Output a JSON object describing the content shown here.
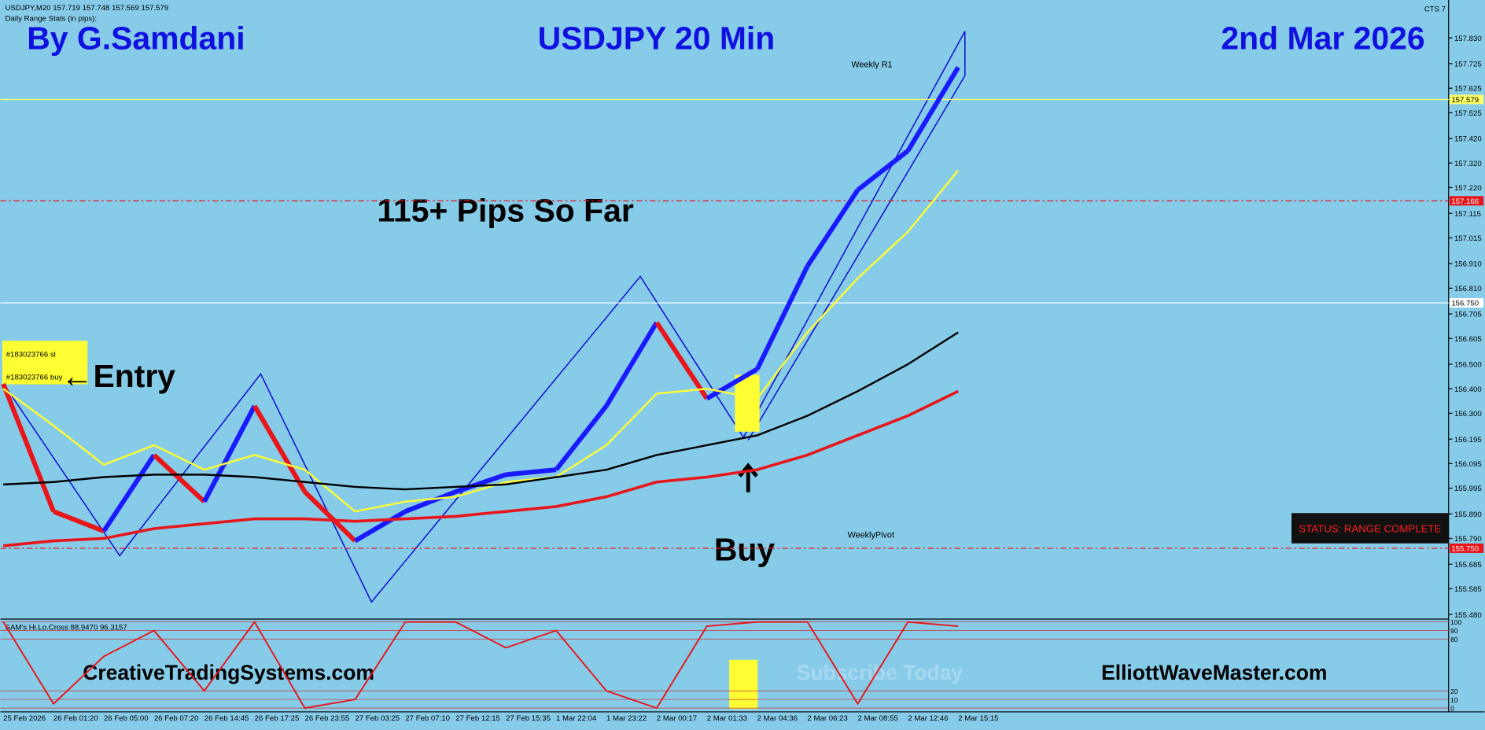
{
  "header": {
    "symbol_info": "USDJPY,M20  157.719 157.748 157.569 157.579",
    "range_stats": "Daily Range Stats (in pips):",
    "author": "By G.Samdani",
    "headline": "USDJPY 20 Min",
    "date": "2nd Mar 2026",
    "indicator": "CTS 7"
  },
  "annotations": {
    "pips": "115+ Pips So Far",
    "entry": "Entry",
    "buy": "Buy",
    "weekly_r1": "Weekly R1",
    "weekly_pivot": "WeeklyPivot",
    "status": "STATUS: RANGE COMPLETE",
    "order_sl": "#183023766 sl",
    "order_buy": "#183023766 buy",
    "site1": "CreativeTradingSystems.com",
    "subscribe": "Subscribe Today",
    "site2": "ElliottWaveMaster.com"
  },
  "chart_data": {
    "type": "line",
    "categories": [
      "25 Feb 2026",
      "26 Feb 01:20",
      "26 Feb 05:00",
      "26 Feb 07:20",
      "26 Feb 14:45",
      "26 Feb 17:25",
      "26 Feb 23:55",
      "27 Feb 03:25",
      "27 Feb 07:10",
      "27 Feb 12:15",
      "27 Feb 15:35",
      "1 Mar 22:04",
      "1 Mar 23:22",
      "2 Mar 00:17",
      "2 Mar 01:33",
      "2 Mar 04:36",
      "2 Mar 06:23",
      "2 Mar 08:55",
      "2 Mar 12:46",
      "2 Mar 15:15"
    ],
    "series": [
      {
        "name": "Price",
        "color": "#1a1aff",
        "values": [
          156.42,
          155.9,
          155.82,
          156.13,
          155.94,
          156.33,
          155.98,
          155.78,
          155.9,
          155.98,
          156.05,
          156.07,
          156.33,
          156.67,
          156.36,
          156.48,
          156.9,
          157.21,
          157.37,
          157.71
        ]
      },
      {
        "name": "Yellow MA",
        "color": "#ffff33",
        "values": [
          156.4,
          156.25,
          156.09,
          156.17,
          156.07,
          156.13,
          156.07,
          155.9,
          155.94,
          155.96,
          156.02,
          156.04,
          156.17,
          156.38,
          156.4,
          156.36,
          156.63,
          156.85,
          157.04,
          157.29
        ]
      },
      {
        "name": "Black MA",
        "color": "#000000",
        "values": [
          156.01,
          156.02,
          156.04,
          156.05,
          156.05,
          156.04,
          156.02,
          156.0,
          155.99,
          156.0,
          156.01,
          156.04,
          156.07,
          156.13,
          156.17,
          156.21,
          156.29,
          156.39,
          156.5,
          156.63
        ]
      },
      {
        "name": "Red MA",
        "color": "#e8161b",
        "values": [
          155.76,
          155.78,
          155.79,
          155.83,
          155.85,
          155.87,
          155.87,
          155.86,
          155.87,
          155.88,
          155.9,
          155.92,
          155.96,
          156.02,
          156.04,
          156.07,
          156.13,
          156.21,
          156.29,
          156.39
        ]
      }
    ],
    "ylim": [
      155.469,
      157.969
    ],
    "yticks": [
      {
        "value": 157.83,
        "label": "157.830"
      },
      {
        "value": 157.725,
        "label": "157.725"
      },
      {
        "value": 157.625,
        "label": "157.625"
      },
      {
        "value": 157.525,
        "label": "157.525"
      },
      {
        "value": 157.42,
        "label": "157.420"
      },
      {
        "value": 157.32,
        "label": "157.320"
      },
      {
        "value": 157.22,
        "label": "157.220"
      },
      {
        "value": 157.115,
        "label": "157.115"
      },
      {
        "value": 157.015,
        "label": "157.015"
      },
      {
        "value": 156.91,
        "label": "156.910"
      },
      {
        "value": 156.81,
        "label": "156.810"
      },
      {
        "value": 156.705,
        "label": "156.705"
      },
      {
        "value": 156.605,
        "label": "156.605"
      },
      {
        "value": 156.5,
        "label": "156.500"
      },
      {
        "value": 156.4,
        "label": "156.400"
      },
      {
        "value": 156.3,
        "label": "156.300"
      },
      {
        "value": 156.195,
        "label": "156.195"
      },
      {
        "value": 156.095,
        "label": "156.095"
      },
      {
        "value": 155.995,
        "label": "155.995"
      },
      {
        "value": 155.89,
        "label": "155.890"
      },
      {
        "value": 155.79,
        "label": "155.790"
      },
      {
        "value": 155.685,
        "label": "155.685"
      },
      {
        "value": 155.585,
        "label": "155.585"
      },
      {
        "value": 155.48,
        "label": "155.480"
      }
    ],
    "levels": [
      {
        "value": 157.579,
        "label": "157.579",
        "color": "#ffff66"
      },
      {
        "value": 157.166,
        "label": "157.166",
        "color": "#e8161b"
      },
      {
        "value": 156.75,
        "label": "156.750",
        "color": "#ffffff"
      },
      {
        "value": 155.75,
        "label": "155.750",
        "color": "#e8161b"
      }
    ],
    "oscillator": {
      "title": "SAM's Hi.Lo.Cross 88.9470 96.3157",
      "color": "#e8161b",
      "values": [
        100,
        5,
        60,
        90,
        20,
        100,
        0,
        10,
        100,
        100,
        70,
        90,
        20,
        0,
        95,
        100,
        100,
        5,
        100,
        95
      ],
      "ylim": [
        0,
        100
      ],
      "yticks": [
        0,
        10,
        20,
        80,
        90,
        100
      ]
    }
  }
}
